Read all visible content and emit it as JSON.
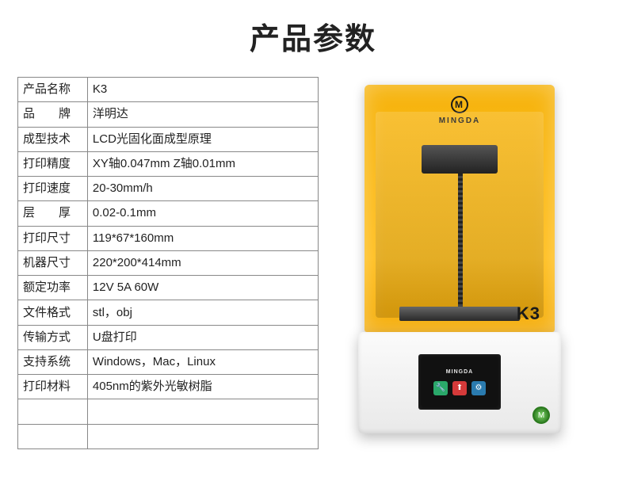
{
  "title": "产品参数",
  "table": {
    "rows": [
      {
        "label": "产品名称",
        "value": "K3"
      },
      {
        "label": "品　　牌",
        "value": "洋明达"
      },
      {
        "label": "成型技术",
        "value": "LCD光固化面成型原理"
      },
      {
        "label": "打印精度",
        "value": "XY轴0.047mm Z轴0.01mm"
      },
      {
        "label": "打印速度",
        "value": "20-30mm/h"
      },
      {
        "label": "层　　厚",
        "value": "0.02-0.1mm"
      },
      {
        "label": "打印尺寸",
        "value": "119*67*160mm"
      },
      {
        "label": "机器尺寸",
        "value": "220*200*414mm"
      },
      {
        "label": "额定功率",
        "value": "12V 5A 60W"
      },
      {
        "label": "文件格式",
        "value": "stl，obj"
      },
      {
        "label": "传输方式",
        "value": "U盘打印"
      },
      {
        "label": "支持系统",
        "value": "Windows，Mac，Linux"
      },
      {
        "label": "打印材料",
        "value": "405nm的紫外光敏树脂"
      },
      {
        "label": "",
        "value": ""
      },
      {
        "label": "",
        "value": ""
      }
    ]
  },
  "product": {
    "brand": "MINGDA",
    "brand_logo_letter": "M",
    "model": "K3",
    "screen_brand": "MINGDA",
    "screen_icons": [
      "🔧",
      "⬆",
      "⚙"
    ],
    "power_glyph": "M"
  },
  "colors": {
    "cover": "#f6b30d",
    "base": "#f0f0f0",
    "text": "#222222",
    "border": "#888888"
  }
}
